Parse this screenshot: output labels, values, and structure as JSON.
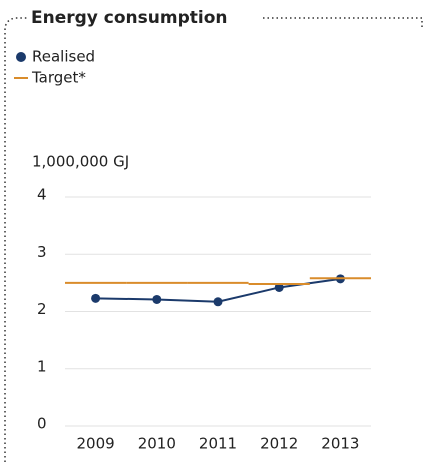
{
  "chart_data": {
    "type": "line",
    "title": "Energy consumption",
    "ylabel": "1,000,000 GJ",
    "categories": [
      "2009",
      "2010",
      "2011",
      "2012",
      "2013"
    ],
    "series": [
      {
        "name": "Realised",
        "color": "#1b3a6b",
        "style": "line-markers",
        "values": [
          2.23,
          2.21,
          2.17,
          2.42,
          2.57
        ]
      },
      {
        "name": "Target*",
        "color": "#d98c2b",
        "style": "step",
        "values": [
          2.5,
          2.5,
          2.5,
          2.48,
          2.58
        ]
      }
    ],
    "ylim": [
      0,
      4
    ],
    "yticks": [
      0,
      1,
      2,
      3,
      4
    ],
    "grid": true
  }
}
